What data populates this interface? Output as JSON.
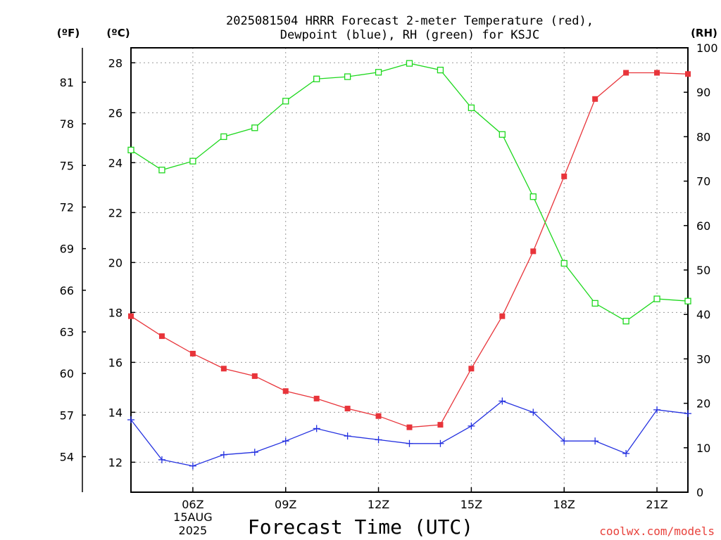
{
  "chart_data": {
    "type": "line",
    "title_line1": "2025081504 HRRR Forecast 2-meter Temperature (red),",
    "title_line2": "Dewpoint (blue), RH (green) for KSJC",
    "xlabel": "Forecast Time (UTC)",
    "credit": "coolwx.com/models",
    "left_outer_unit": "(ºF)",
    "left_inner_unit": "(ºC)",
    "right_unit": "(RH)",
    "x_hours": [
      4,
      5,
      6,
      7,
      8,
      9,
      10,
      11,
      12,
      13,
      14,
      15,
      16,
      17,
      18,
      19,
      20,
      21,
      22
    ],
    "xlim": [
      4,
      22
    ],
    "x_ticks": [
      {
        "hour": 6,
        "label": "06Z",
        "sub1": "15AUG",
        "sub2": "2025"
      },
      {
        "hour": 9,
        "label": "09Z"
      },
      {
        "hour": 12,
        "label": "12Z"
      },
      {
        "hour": 15,
        "label": "15Z"
      },
      {
        "hour": 18,
        "label": "18Z"
      },
      {
        "hour": 21,
        "label": "21Z"
      }
    ],
    "celsius_ylim": [
      10.8,
      28.6
    ],
    "celsius_ticks": [
      12,
      14,
      16,
      18,
      20,
      22,
      24,
      26,
      28
    ],
    "fahrenheit_ticks": [
      54,
      57,
      60,
      63,
      66,
      69,
      72,
      75,
      78,
      81
    ],
    "rh_ylim": [
      0,
      100
    ],
    "rh_ticks": [
      0,
      10,
      20,
      30,
      40,
      50,
      60,
      70,
      80,
      90,
      100
    ],
    "grid": true,
    "series": [
      {
        "name": "Temperature",
        "axis": "celsius",
        "color": "#e8343a",
        "marker": "filled-square",
        "values": [
          17.85,
          17.05,
          16.35,
          15.75,
          15.45,
          14.85,
          14.55,
          14.15,
          13.85,
          13.4,
          13.5,
          15.75,
          17.85,
          20.45,
          23.45,
          26.55,
          27.6,
          27.6,
          27.55
        ]
      },
      {
        "name": "Dewpoint",
        "axis": "celsius",
        "color": "#2431e0",
        "marker": "plus",
        "values": [
          13.7,
          12.1,
          11.85,
          12.3,
          12.4,
          12.85,
          13.35,
          13.05,
          12.9,
          12.75,
          12.75,
          13.45,
          14.45,
          14.0,
          12.85,
          12.85,
          12.35,
          14.1,
          13.95
        ]
      },
      {
        "name": "RH",
        "axis": "rh",
        "color": "#1ed81e",
        "marker": "open-square",
        "values": [
          77,
          72.5,
          74.5,
          80,
          82,
          88,
          93,
          93.5,
          94.5,
          96.5,
          95,
          86.5,
          80.5,
          66.5,
          51.5,
          42.5,
          38.5,
          43.5,
          43
        ]
      }
    ]
  }
}
